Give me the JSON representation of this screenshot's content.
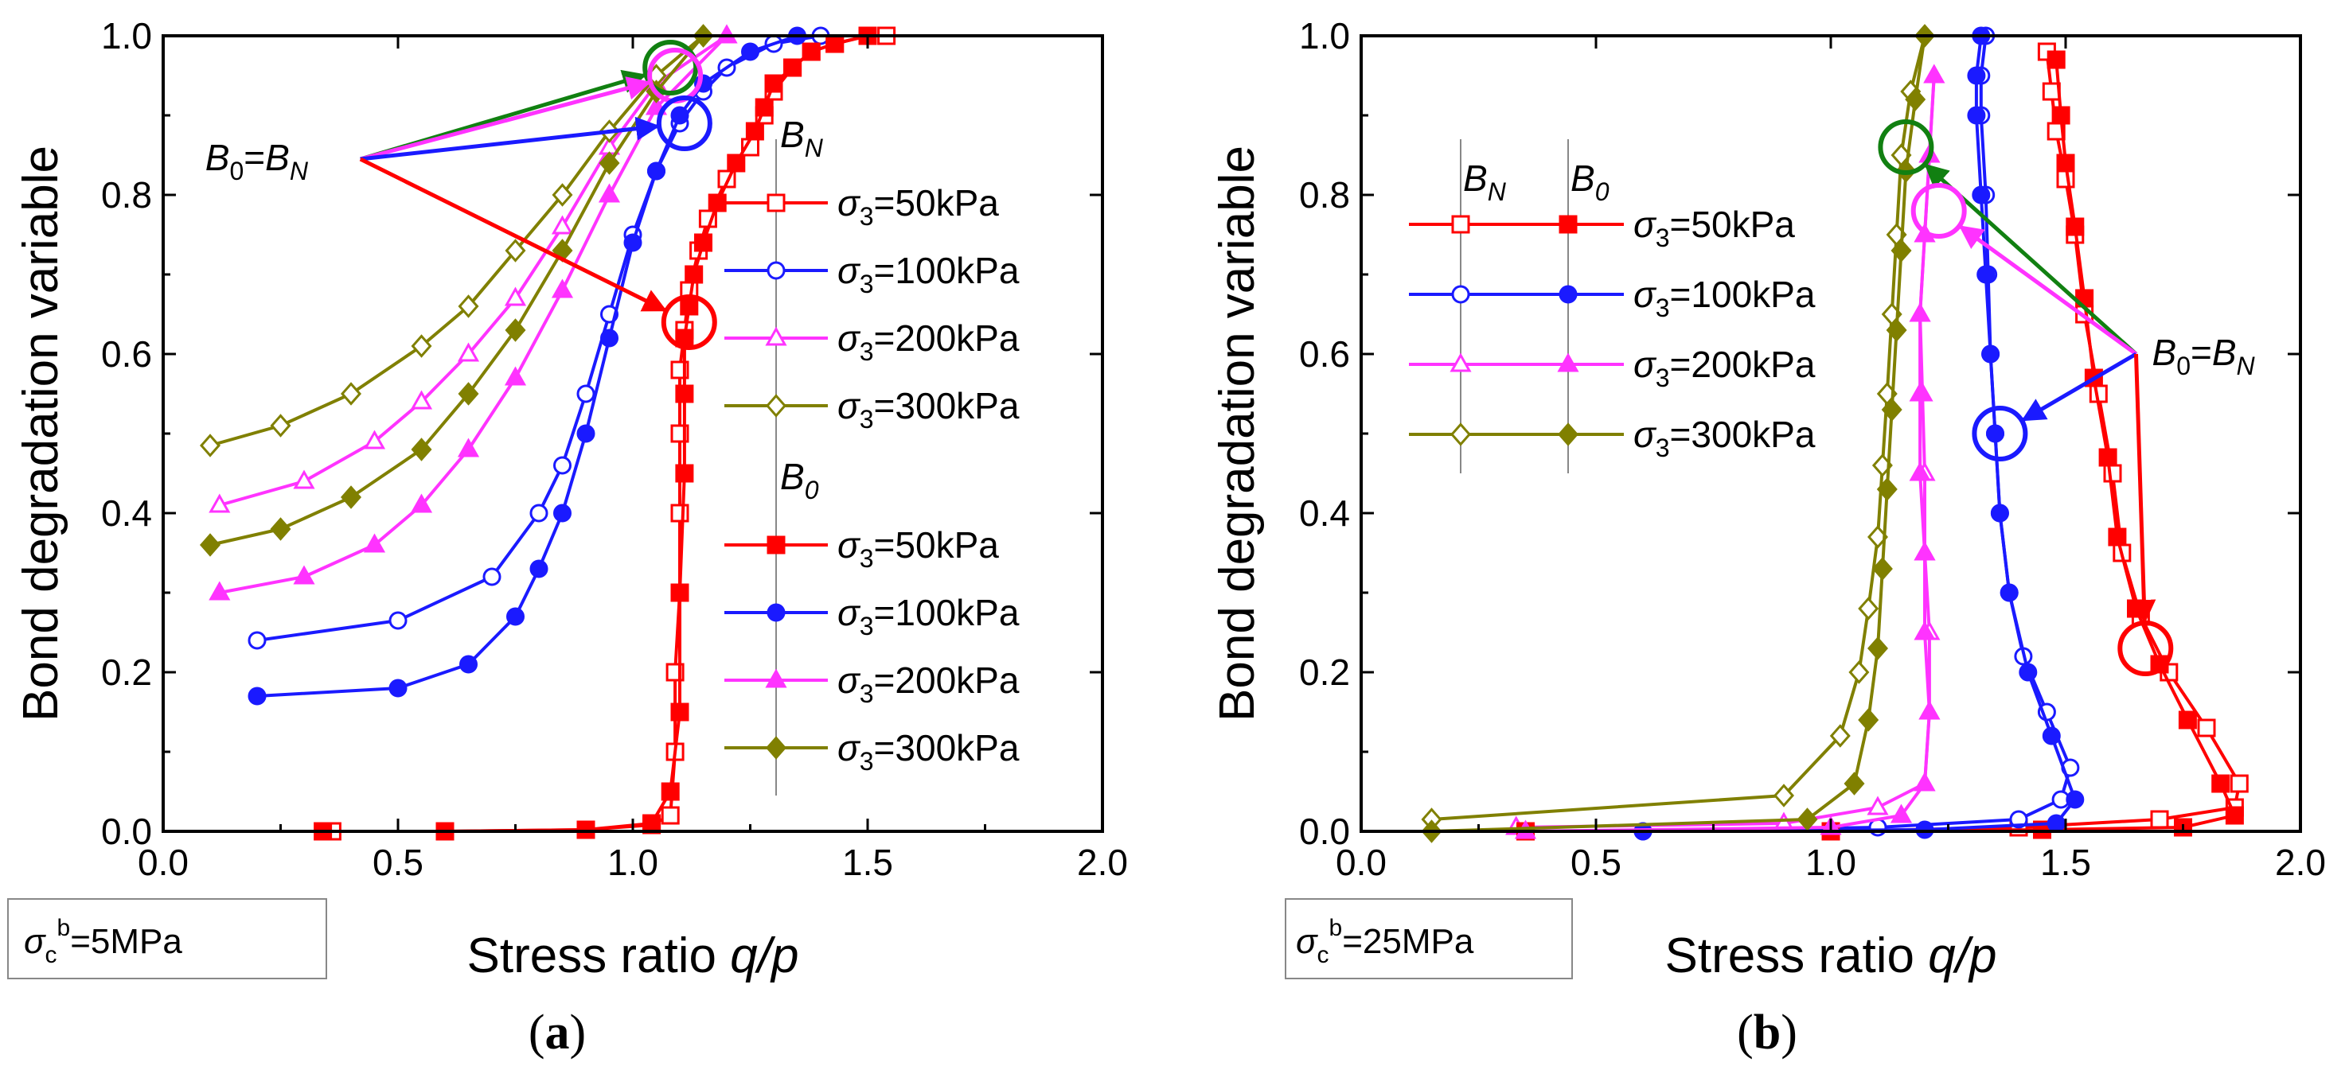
{
  "colors": {
    "s50": "#ff0000",
    "s100": "#1a1aff",
    "s200": "#ff33ff",
    "s300": "#808000",
    "arrow_green": "#118011"
  },
  "chart_data": [
    {
      "type": "line",
      "panel_label": "(a)",
      "condition": {
        "symbol": "σ",
        "sub": "c",
        "sup": "b",
        "value": "=5MPa"
      },
      "xlabel": "Stress ratio ",
      "xlabel_italic": "q/p",
      "ylabel": "Bond degradation variable",
      "xlim": [
        0.0,
        2.0
      ],
      "ylim": [
        0.0,
        1.0
      ],
      "xticks": [
        "0.0",
        "0.5",
        "1.0",
        "1.5",
        "2.0"
      ],
      "yticks": [
        "0.0",
        "0.2",
        "0.4",
        "0.6",
        "0.8",
        "1.0"
      ],
      "legend_groups": [
        {
          "title_main": "B",
          "title_sub": "N",
          "filled": false
        },
        {
          "title_main": "B",
          "title_sub": "0",
          "filled": true
        }
      ],
      "legend_entries": [
        "σ3=50kPa",
        "σ3=100kPa",
        "σ3=200kPa",
        "σ3=300kPa"
      ],
      "annotation": {
        "text_main": "B",
        "text_sub1": "0",
        "eq": "=B",
        "text_sub2": "N",
        "x": 0.42,
        "y": 0.845
      },
      "circles": [
        {
          "x": 1.08,
          "y": 0.96,
          "series": "s300"
        },
        {
          "x": 1.09,
          "y": 0.95,
          "series": "s200"
        },
        {
          "x": 1.11,
          "y": 0.89,
          "series": "s100"
        },
        {
          "x": 1.12,
          "y": 0.64,
          "series": "s50"
        }
      ],
      "series": [
        {
          "name": "σ3=50kPa",
          "key": "s50",
          "group": "BN",
          "marker": "square",
          "x": [
            0.36,
            0.6,
            0.9,
            1.04,
            1.08,
            1.09,
            1.09,
            1.1,
            1.1,
            1.1,
            1.1,
            1.11,
            1.12,
            1.14,
            1.16,
            1.2,
            1.25,
            1.28,
            1.3,
            1.34,
            1.38,
            1.43,
            1.5,
            1.54
          ],
          "y": [
            0.0,
            0.0,
            0.002,
            0.008,
            0.02,
            0.1,
            0.2,
            0.3,
            0.4,
            0.5,
            0.58,
            0.63,
            0.68,
            0.73,
            0.77,
            0.82,
            0.86,
            0.9,
            0.93,
            0.96,
            0.98,
            0.99,
            1.0,
            1.0
          ]
        },
        {
          "name": "σ3=100kPa",
          "key": "s100",
          "group": "BN",
          "marker": "circle",
          "x": [
            0.2,
            0.5,
            0.7,
            0.8,
            0.85,
            0.9,
            0.95,
            1.0,
            1.05,
            1.1,
            1.15,
            1.2,
            1.3,
            1.4
          ],
          "y": [
            0.24,
            0.265,
            0.32,
            0.4,
            0.46,
            0.55,
            0.65,
            0.75,
            0.83,
            0.89,
            0.93,
            0.96,
            0.99,
            1.0
          ]
        },
        {
          "name": "σ3=200kPa",
          "key": "s200",
          "group": "BN",
          "marker": "triangle",
          "x": [
            0.12,
            0.3,
            0.45,
            0.55,
            0.65,
            0.75,
            0.85,
            0.95,
            1.05,
            1.2
          ],
          "y": [
            0.41,
            0.44,
            0.49,
            0.54,
            0.6,
            0.67,
            0.76,
            0.86,
            0.94,
            1.0
          ]
        },
        {
          "name": "σ3=300kPa",
          "key": "s300",
          "group": "BN",
          "marker": "diamond",
          "x": [
            0.1,
            0.25,
            0.4,
            0.55,
            0.65,
            0.75,
            0.85,
            0.95,
            1.05,
            1.15
          ],
          "y": [
            0.485,
            0.51,
            0.55,
            0.61,
            0.66,
            0.73,
            0.8,
            0.88,
            0.95,
            1.0
          ]
        },
        {
          "name": "σ3=50kPa",
          "key": "s50",
          "group": "B0",
          "marker": "square",
          "x": [
            0.34,
            0.6,
            0.9,
            1.04,
            1.08,
            1.1,
            1.1,
            1.11,
            1.11,
            1.11,
            1.12,
            1.13,
            1.15,
            1.18,
            1.22,
            1.26,
            1.28,
            1.3,
            1.34,
            1.38,
            1.43,
            1.5
          ],
          "y": [
            0.0,
            0.0,
            0.002,
            0.01,
            0.05,
            0.15,
            0.3,
            0.45,
            0.55,
            0.62,
            0.66,
            0.7,
            0.74,
            0.79,
            0.84,
            0.88,
            0.91,
            0.94,
            0.96,
            0.98,
            0.99,
            1.0
          ]
        },
        {
          "name": "σ3=100kPa",
          "key": "s100",
          "group": "B0",
          "marker": "circle",
          "x": [
            0.2,
            0.5,
            0.65,
            0.75,
            0.8,
            0.85,
            0.9,
            0.95,
            1.0,
            1.05,
            1.1,
            1.15,
            1.25,
            1.35
          ],
          "y": [
            0.17,
            0.18,
            0.21,
            0.27,
            0.33,
            0.4,
            0.5,
            0.62,
            0.74,
            0.83,
            0.9,
            0.94,
            0.98,
            1.0
          ]
        },
        {
          "name": "σ3=200kPa",
          "key": "s200",
          "group": "B0",
          "marker": "triangle",
          "x": [
            0.12,
            0.3,
            0.45,
            0.55,
            0.65,
            0.75,
            0.85,
            0.95,
            1.05,
            1.2
          ],
          "y": [
            0.3,
            0.32,
            0.36,
            0.41,
            0.48,
            0.57,
            0.68,
            0.8,
            0.91,
            1.0
          ]
        },
        {
          "name": "σ3=300kPa",
          "key": "s300",
          "group": "B0",
          "marker": "diamond",
          "x": [
            0.1,
            0.25,
            0.4,
            0.55,
            0.65,
            0.75,
            0.85,
            0.95,
            1.05,
            1.15
          ],
          "y": [
            0.36,
            0.38,
            0.42,
            0.48,
            0.55,
            0.63,
            0.73,
            0.84,
            0.93,
            1.0
          ]
        }
      ]
    },
    {
      "type": "line",
      "panel_label": "(b)",
      "condition": {
        "symbol": "σ",
        "sub": "c",
        "sup": "b",
        "value": "=25MPa"
      },
      "xlabel": "Stress ratio ",
      "xlabel_italic": "q/p",
      "ylabel": "Bond degradation variable",
      "xlim": [
        0.0,
        2.0
      ],
      "ylim": [
        0.0,
        1.0
      ],
      "xticks": [
        "0.0",
        "0.5",
        "1.0",
        "1.5",
        "2.0"
      ],
      "yticks": [
        "0.0",
        "0.2",
        "0.4",
        "0.6",
        "0.8",
        "1.0"
      ],
      "legend_groups": [
        {
          "title_main": "B",
          "title_sub": "N",
          "filled": false
        },
        {
          "title_main": "B",
          "title_sub": "0",
          "filled": true
        }
      ],
      "legend_entries": [
        "σ3=50kPa",
        "σ3=100kPa",
        "σ3=200kPa",
        "σ3=300kPa"
      ],
      "annotation": {
        "text_main": "B",
        "text_sub1": "0",
        "eq": "=B",
        "text_sub2": "N",
        "x": 1.65,
        "y": 0.6
      },
      "circles": [
        {
          "x": 1.16,
          "y": 0.86,
          "series": "s300"
        },
        {
          "x": 1.23,
          "y": 0.78,
          "series": "s200"
        },
        {
          "x": 1.36,
          "y": 0.5,
          "series": "s100"
        },
        {
          "x": 1.67,
          "y": 0.23,
          "series": "s50"
        }
      ],
      "series": [
        {
          "name": "σ3=50kPa",
          "key": "s50",
          "group": "BN",
          "marker": "square",
          "x": [
            0.35,
            1.0,
            1.4,
            1.7,
            1.86,
            1.87,
            1.8,
            1.72,
            1.66,
            1.62,
            1.6,
            1.57,
            1.54,
            1.52,
            1.5,
            1.48,
            1.47,
            1.46
          ],
          "y": [
            0.0,
            0.0,
            0.005,
            0.015,
            0.03,
            0.06,
            0.13,
            0.2,
            0.27,
            0.35,
            0.45,
            0.55,
            0.65,
            0.75,
            0.82,
            0.88,
            0.93,
            0.98
          ]
        },
        {
          "name": "σ3=100kPa",
          "key": "s100",
          "group": "BN",
          "marker": "circle",
          "x": [
            0.6,
            1.1,
            1.4,
            1.49,
            1.51,
            1.46,
            1.41,
            1.38,
            1.36,
            1.35,
            1.34,
            1.335,
            1.33,
            1.32,
            1.32,
            1.33
          ],
          "y": [
            0.0,
            0.005,
            0.015,
            0.04,
            0.08,
            0.15,
            0.22,
            0.3,
            0.4,
            0.5,
            0.6,
            0.7,
            0.8,
            0.9,
            0.95,
            1.0
          ]
        },
        {
          "name": "σ3=200kPa",
          "key": "s200",
          "group": "BN",
          "marker": "triangle",
          "x": [
            0.33,
            0.9,
            1.1,
            1.2,
            1.21,
            1.21,
            1.2,
            1.2,
            1.195,
            1.19,
            1.2,
            1.21,
            1.22
          ],
          "y": [
            0.005,
            0.01,
            0.03,
            0.06,
            0.15,
            0.25,
            0.35,
            0.45,
            0.55,
            0.65,
            0.75,
            0.85,
            0.95
          ]
        },
        {
          "name": "σ3=300kPa",
          "key": "s300",
          "group": "BN",
          "marker": "diamond",
          "x": [
            0.15,
            0.9,
            1.02,
            1.06,
            1.08,
            1.1,
            1.11,
            1.12,
            1.13,
            1.14,
            1.15,
            1.17,
            1.2
          ],
          "y": [
            0.015,
            0.045,
            0.12,
            0.2,
            0.28,
            0.37,
            0.46,
            0.55,
            0.65,
            0.75,
            0.85,
            0.93,
            1.0
          ]
        },
        {
          "name": "σ3=50kPa",
          "key": "s50",
          "group": "B0",
          "marker": "square",
          "x": [
            0.35,
            1.0,
            1.45,
            1.75,
            1.86,
            1.83,
            1.76,
            1.7,
            1.65,
            1.61,
            1.59,
            1.56,
            1.54,
            1.52,
            1.5,
            1.49,
            1.48
          ],
          "y": [
            0.0,
            0.0,
            0.002,
            0.005,
            0.02,
            0.06,
            0.14,
            0.21,
            0.28,
            0.37,
            0.47,
            0.57,
            0.67,
            0.76,
            0.84,
            0.9,
            0.97
          ]
        },
        {
          "name": "σ3=100kPa",
          "key": "s100",
          "group": "B0",
          "marker": "circle",
          "x": [
            0.6,
            1.2,
            1.48,
            1.52,
            1.47,
            1.42,
            1.38,
            1.36,
            1.35,
            1.34,
            1.33,
            1.32,
            1.31,
            1.31,
            1.32
          ],
          "y": [
            0.0,
            0.002,
            0.01,
            0.04,
            0.12,
            0.2,
            0.3,
            0.4,
            0.5,
            0.6,
            0.7,
            0.8,
            0.9,
            0.95,
            1.0
          ]
        },
        {
          "name": "σ3=200kPa",
          "key": "s200",
          "group": "B0",
          "marker": "triangle",
          "x": [
            0.35,
            1.0,
            1.15,
            1.2,
            1.21,
            1.2,
            1.2,
            1.19,
            1.19,
            1.19,
            1.2,
            1.21,
            1.22
          ],
          "y": [
            0.0,
            0.005,
            0.02,
            0.06,
            0.15,
            0.25,
            0.35,
            0.45,
            0.55,
            0.65,
            0.75,
            0.85,
            0.95
          ]
        },
        {
          "name": "σ3=300kPa",
          "key": "s300",
          "group": "B0",
          "marker": "diamond",
          "x": [
            0.15,
            0.95,
            1.05,
            1.08,
            1.1,
            1.11,
            1.12,
            1.13,
            1.14,
            1.15,
            1.16,
            1.18,
            1.2
          ],
          "y": [
            0.0,
            0.015,
            0.06,
            0.14,
            0.23,
            0.33,
            0.43,
            0.53,
            0.63,
            0.73,
            0.83,
            0.92,
            1.0
          ]
        }
      ]
    }
  ]
}
